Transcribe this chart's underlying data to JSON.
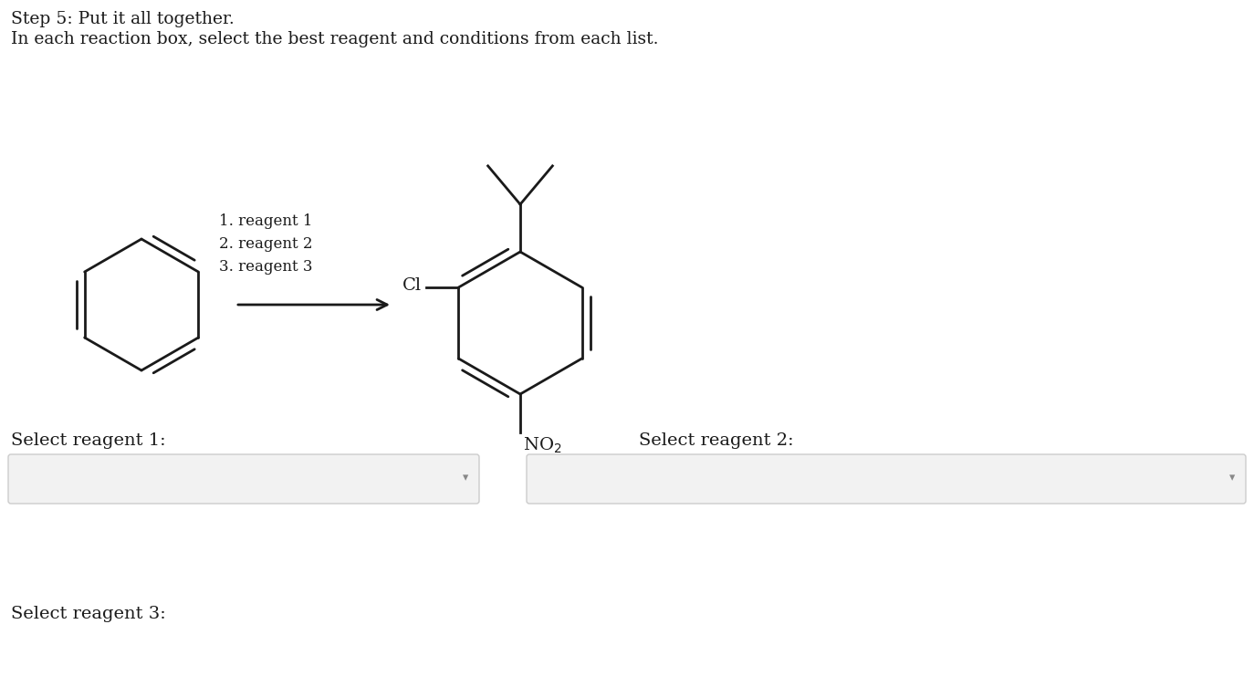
{
  "title_line1": "Step 5: Put it all together.",
  "title_line2": "In each reaction box, select the best reagent and conditions from each list.",
  "reagent_lines": [
    "1. reagent 1",
    "2. reagent 2",
    "3. reagent 3"
  ],
  "cl_label": "Cl",
  "select_reagent1": "Select reagent 1:",
  "select_reagent2": "Select reagent 2:",
  "select_reagent3": "Select reagent 3:",
  "bg_color": "#ffffff",
  "text_color": "#1a1a1a",
  "line_color": "#1a1a1a",
  "box_fill": "#f2f2f2",
  "box_edge": "#cccccc",
  "arrow_color": "#888888"
}
